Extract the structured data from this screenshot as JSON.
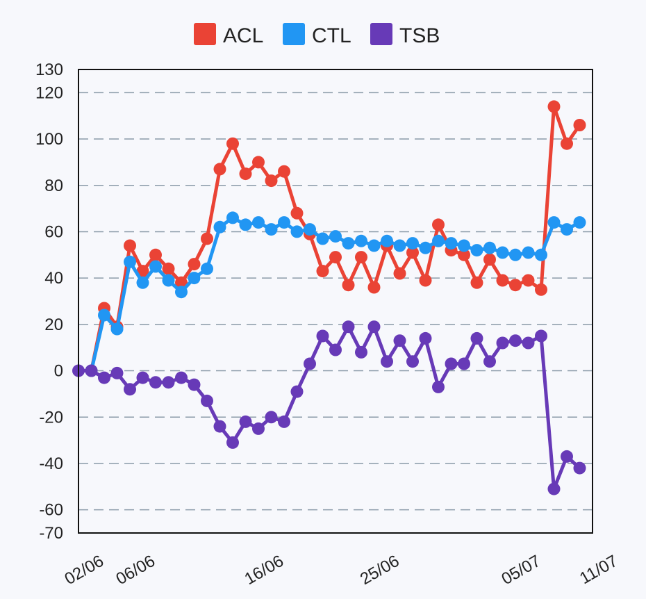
{
  "chart_data": {
    "type": "line",
    "title": "",
    "xlabel": "",
    "ylabel": "",
    "ylim": [
      -70,
      130
    ],
    "y_ticks": [
      130,
      120,
      100,
      80,
      60,
      40,
      20,
      0,
      -20,
      -40,
      -60,
      -70
    ],
    "grid": true,
    "legend_position": "top-center",
    "x_tick_labels": [
      {
        "label": "02/06",
        "index": 0
      },
      {
        "label": "06/06",
        "index": 4
      },
      {
        "label": "16/06",
        "index": 14
      },
      {
        "label": "25/06",
        "index": 23
      },
      {
        "label": "05/07",
        "index": 34
      },
      {
        "label": "11/07",
        "index": 40
      }
    ],
    "num_points": 40,
    "series": [
      {
        "name": "ACL",
        "color": "#ea4335",
        "start_index": 1,
        "values": [
          0,
          27,
          19,
          54,
          43,
          50,
          44,
          38,
          46,
          57,
          87,
          98,
          85,
          90,
          82,
          86,
          68,
          59,
          43,
          49,
          37,
          49,
          36,
          54,
          42,
          51,
          39,
          63,
          52,
          50,
          38,
          48,
          39,
          37,
          39,
          35,
          114,
          98,
          106
        ]
      },
      {
        "name": "CTL",
        "color": "#2196f3",
        "start_index": 1,
        "values": [
          0,
          24,
          18,
          47,
          38,
          45,
          39,
          34,
          40,
          44,
          62,
          66,
          63,
          64,
          61,
          64,
          60,
          61,
          57,
          58,
          55,
          56,
          54,
          56,
          54,
          55,
          53,
          56,
          55,
          54,
          52,
          53,
          51,
          50,
          51,
          50,
          64,
          61,
          64
        ]
      },
      {
        "name": "TSB",
        "color": "#673ab7",
        "start_index": 0,
        "values": [
          0,
          0,
          -3,
          -1,
          -8,
          -3,
          -5,
          -5,
          -3,
          -6,
          -13,
          -24,
          -31,
          -22,
          -25,
          -20,
          -22,
          -9,
          3,
          15,
          9,
          19,
          8,
          19,
          4,
          13,
          4,
          14,
          -7,
          3,
          3,
          14,
          4,
          12,
          13,
          12,
          15,
          -51,
          -37,
          -42
        ]
      }
    ]
  }
}
